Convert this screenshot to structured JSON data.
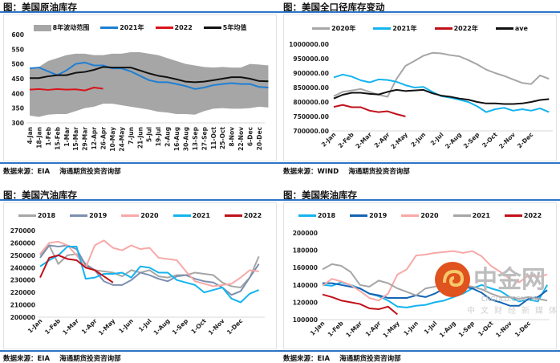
{
  "panels": [
    {
      "title": "图：美国原油库存",
      "source": [
        "数据来源：EIA",
        "海通期货投资咨询部"
      ]
    },
    {
      "title": "图：美国全口径库存变动",
      "source": [
        "数据来源：WIND",
        "海通期货投资咨询部"
      ]
    },
    {
      "title": "图：美国汽油库存",
      "source": [
        "数据来源：EIA",
        "海通期货投资咨询部"
      ]
    },
    {
      "title": "图：美国柴油库存",
      "source": [
        "数据来源：EIA",
        "海通期货投资咨询部"
      ]
    }
  ],
  "watermark": {
    "brand": "中金网",
    "domain": "CNGOLD.COM.CN",
    "slogan": "中文财经新媒体",
    "color": "#d8461f"
  },
  "chart_data": [
    {
      "type": "line",
      "title": "",
      "ylim": [
        300,
        600
      ],
      "yticks": [
        "300",
        "350",
        "400",
        "450",
        "500",
        "550",
        "600"
      ],
      "xticks": [
        "4-Jan",
        "18-Jan",
        "1-Feb",
        "15-Feb",
        "1-Mar",
        "15-Mar",
        "29-Mar",
        "12-Apr",
        "26-Apr",
        "10-May",
        "24-May",
        "7-Jun",
        "21-Jun",
        "5-Jul",
        "19-Jul",
        "2-Aug",
        "16-Aug",
        "30-Aug",
        "13-Sep",
        "27-Sep",
        "11-Oct",
        "25-Oct",
        "8-Nov",
        "22-Nov",
        "6-Dec",
        "20-Dec"
      ],
      "band": {
        "name": "8年波动范围",
        "color": "#a6a6a6",
        "upper": [
          485,
          490,
          510,
          520,
          530,
          535,
          535,
          530,
          530,
          535,
          535,
          540,
          540,
          535,
          530,
          520,
          510,
          500,
          495,
          490,
          488,
          490,
          488,
          488,
          500,
          498,
          495
        ],
        "lower": [
          325,
          320,
          328,
          330,
          330,
          340,
          350,
          355,
          365,
          365,
          360,
          355,
          350,
          345,
          338,
          335,
          330,
          330,
          328,
          340,
          348,
          350,
          348,
          348,
          350,
          355,
          352
        ]
      },
      "series": [
        {
          "name": "2021年",
          "color": "#1f7fd4",
          "values": [
            485,
            488,
            475,
            462,
            478,
            500,
            505,
            495,
            495,
            485,
            485,
            475,
            460,
            445,
            438,
            438,
            432,
            425,
            415,
            420,
            428,
            432,
            435,
            432,
            432,
            422,
            420
          ]
        },
        {
          "name": "2022",
          "color": "#d9141b",
          "values": [
            413,
            415,
            412,
            415,
            413,
            414,
            410,
            420,
            416
          ]
        },
        {
          "name": "5年均值",
          "color": "#111111",
          "values": [
            452,
            452,
            458,
            462,
            462,
            470,
            473,
            480,
            490,
            488,
            488,
            488,
            478,
            468,
            460,
            455,
            448,
            440,
            438,
            440,
            445,
            450,
            455,
            455,
            450,
            442,
            441
          ]
        }
      ]
    },
    {
      "type": "line",
      "title": "",
      "ylim": [
        700000,
        1000000
      ],
      "yticks": [
        "700000.00",
        "750000.00",
        "800000.00",
        "850000.00",
        "900000.00",
        "950000.00",
        "1000000.00"
      ],
      "xticks": [
        "2-Jan",
        "2-Feb",
        "2-Mar",
        "2-Apr",
        "2-May",
        "2-Jun",
        "2-Jul",
        "2-Aug",
        "2-Sep",
        "2-Oct",
        "2-Nov",
        "2-Dec"
      ],
      "series": [
        {
          "name": "2020年",
          "color": "#a6a6a6",
          "values": [
            820000,
            835000,
            840000,
            845000,
            835000,
            825000,
            818000,
            880000,
            925000,
            942000,
            960000,
            970000,
            968000,
            962000,
            958000,
            945000,
            930000,
            912000,
            900000,
            890000,
            878000,
            866000,
            862000,
            892000,
            880000
          ]
        },
        {
          "name": "2021年",
          "color": "#14b4ef",
          "values": [
            885000,
            895000,
            888000,
            875000,
            868000,
            878000,
            876000,
            870000,
            858000,
            850000,
            852000,
            835000,
            820000,
            815000,
            808000,
            800000,
            785000,
            765000,
            775000,
            780000,
            770000,
            775000,
            770000,
            778000,
            765000
          ]
        },
        {
          "name": "2022年",
          "color": "#c0111a",
          "values": [
            783000,
            790000,
            782000,
            782000,
            770000,
            765000,
            768000,
            758000,
            750000
          ]
        },
        {
          "name": "ave",
          "color": "#111111",
          "values": [
            812000,
            825000,
            832000,
            832000,
            828000,
            826000,
            835000,
            842000,
            838000,
            840000,
            842000,
            830000,
            822000,
            818000,
            812000,
            808000,
            800000,
            795000,
            795000,
            793000,
            793000,
            795000,
            800000,
            807000,
            810000
          ]
        }
      ]
    },
    {
      "type": "line",
      "title": "",
      "ylim": [
        200000,
        270000
      ],
      "yticks": [
        "200000",
        "210000",
        "220000",
        "230000",
        "240000",
        "250000",
        "260000",
        "270000"
      ],
      "xticks": [
        "1-Jan",
        "1-Feb",
        "1-Mar",
        "1-Apr",
        "1-May",
        "1-Jun",
        "1-Jul",
        "1-Aug",
        "1-Sep",
        "1-Oct",
        "1-Nov",
        "1-Dec"
      ],
      "series": [
        {
          "name": "2018",
          "color": "#a6a6a6",
          "values": [
            250000,
            258000,
            243000,
            250000,
            251000,
            243000,
            238000,
            237000,
            236000,
            233000,
            238000,
            236000,
            238000,
            233000,
            232000,
            234000,
            234000,
            236000,
            235000,
            234000,
            228000,
            225000,
            224000,
            232000,
            249000
          ]
        },
        {
          "name": "2019",
          "color": "#7c8fb0",
          "values": [
            248000,
            258000,
            257000,
            258000,
            255000,
            242000,
            238000,
            229000,
            226000,
            226000,
            230000,
            236000,
            234000,
            231000,
            229000,
            233000,
            234000,
            231000,
            229000,
            228000,
            224000,
            218000,
            221000,
            232000,
            243000
          ]
        },
        {
          "name": "2020",
          "color": "#f7a9a8",
          "values": [
            251000,
            260000,
            261000,
            258000,
            250000,
            240000,
            258000,
            262000,
            256000,
            254000,
            258000,
            255000,
            256000,
            248000,
            247000,
            246000,
            237000,
            229000,
            227000,
            225000,
            226000,
            227000,
            232000,
            238000,
            237000
          ]
        },
        {
          "name": "2021",
          "color": "#14b4ef",
          "values": [
            241000,
            246000,
            250000,
            257000,
            257000,
            231000,
            232000,
            235000,
            235000,
            236000,
            232000,
            241000,
            240000,
            236000,
            236000,
            230000,
            228000,
            226000,
            220000,
            222000,
            224000,
            215000,
            212000,
            219000,
            222000
          ]
        },
        {
          "name": "2022",
          "color": "#c0111a",
          "values": [
            232000,
            248000,
            250000,
            247000,
            246000,
            240000,
            238000,
            233000,
            228000
          ]
        }
      ]
    },
    {
      "type": "line",
      "title": "",
      "ylim": [
        100000,
        200000
      ],
      "yticks": [
        "100000",
        "120000",
        "140000",
        "160000",
        "180000",
        "200000"
      ],
      "xticks": [
        "1-Jan",
        "1-Feb",
        "1-Mar",
        "1-Apr",
        "1-May",
        "1-Jun",
        "1-Jul",
        "1-Aug",
        "1-Sep",
        "1-Oct",
        "1-Nov",
        "1-Dec"
      ],
      "series": [
        {
          "name": "2018",
          "color": "#14b4ef",
          "values": [
            140000,
            139000,
            143000,
            140000,
            136000,
            130000,
            127000,
            122000,
            115000,
            114000,
            116000,
            117000,
            120000,
            122000,
            126000,
            130000,
            136000,
            140000,
            136000,
            133000,
            126000,
            121000,
            123000,
            121000,
            140000
          ]
        },
        {
          "name": "2019",
          "color": "#1464b4",
          "values": [
            142000,
            142000,
            140000,
            138000,
            136000,
            130000,
            128000,
            125000,
            125000,
            125000,
            128000,
            126000,
            130000,
            136000,
            137000,
            138000,
            136000,
            131000,
            123000,
            120000,
            116000,
            116000,
            124000,
            126000,
            134000
          ]
        },
        {
          "name": "2020",
          "color": "#f7a9a8",
          "values": [
            139000,
            147000,
            144000,
            140000,
            133000,
            125000,
            122000,
            130000,
            152000,
            158000,
            174000,
            175000,
            177000,
            178000,
            179000,
            177000,
            179000,
            173000,
            162000,
            155000,
            147000,
            143000,
            151000,
            149000,
            152000
          ]
        },
        {
          "name": "2021",
          "color": "#a6a6a6",
          "values": [
            158000,
            164000,
            162000,
            155000,
            140000,
            138000,
            145000,
            142000,
            136000,
            132000,
            128000,
            136000,
            138000,
            142000,
            139000,
            140000,
            138000,
            135000,
            130000,
            126000,
            126000,
            124000,
            126000,
            124000,
            122000
          ]
        },
        {
          "name": "2022",
          "color": "#c0111a",
          "values": [
            129000,
            126000,
            122000,
            120000,
            118000,
            113000,
            112000,
            115000,
            106000
          ]
        }
      ]
    }
  ]
}
